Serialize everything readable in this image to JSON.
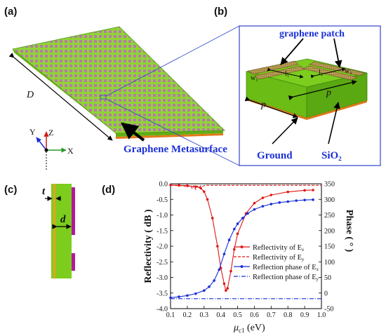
{
  "panels": {
    "a": "(a)",
    "b": "(b)",
    "c": "(c)",
    "d": "(d)"
  },
  "panel_a": {
    "size_label": "D",
    "axis_x": "X",
    "axis_y": "Y",
    "axis_z": "Z",
    "callout": "Graphene Metasurface"
  },
  "panel_b": {
    "patch_label": "graphene patch",
    "l1": "l₁",
    "l2": "l₂",
    "w1": "w₁",
    "w2": "w₂",
    "p_top": "p",
    "p_side": "p",
    "ground": "Ground",
    "substrate": "SiO₂"
  },
  "panel_c": {
    "t": "t",
    "d": "d"
  },
  "colors": {
    "substrate_green": "#7ccd1e",
    "ground_orange": "#e07a1a",
    "graphene_magenta": "#b4189a",
    "patch_brown": "#b59a52",
    "callout_blue": "#1a2fd6",
    "border_blue": "#3344cc",
    "red_series": "#e01818",
    "blue_series": "#1a2fd6"
  },
  "chart_data": {
    "type": "line",
    "xlabel_mu": "μ",
    "xlabel_sub": "c1",
    "xlabel_unit": " (eV)",
    "ylabel_left": "Reflectivity ( dB )",
    "ylabel_right": "Phase ( ° )",
    "xlim": [
      0.1,
      1.0
    ],
    "ylim_left": [
      -4.0,
      0.0
    ],
    "ylim_right": [
      -50,
      350
    ],
    "x_ticks": [
      "0.1",
      "0.2",
      "0.3",
      "0.4",
      "0.5",
      "0.6",
      "0.7",
      "0.8",
      "0.9",
      "1.0"
    ],
    "y_left_ticks": [
      "0.0",
      "-0.5",
      "-1.0",
      "-1.5",
      "-2.0",
      "-2.5",
      "-3.0",
      "-3.5",
      "-4.0"
    ],
    "y_right_ticks": [
      "350",
      "300",
      "250",
      "200",
      "150",
      "100",
      "50",
      "0",
      "-50"
    ],
    "legend_position": "center-right",
    "series": [
      {
        "name": "Reflectivity of E",
        "sub": "x",
        "axis": "left",
        "color": "#e01818",
        "style": "solid-marker",
        "x": [
          0.1,
          0.15,
          0.2,
          0.25,
          0.28,
          0.3,
          0.32,
          0.35,
          0.38,
          0.4,
          0.42,
          0.43,
          0.44,
          0.46,
          0.48,
          0.5,
          0.55,
          0.6,
          0.65,
          0.7,
          0.8,
          0.9,
          0.95
        ],
        "y": [
          -0.04,
          -0.05,
          -0.06,
          -0.09,
          -0.14,
          -0.25,
          -0.5,
          -1.1,
          -2.0,
          -2.7,
          -3.2,
          -3.42,
          -3.35,
          -2.8,
          -2.1,
          -1.6,
          -0.95,
          -0.62,
          -0.45,
          -0.36,
          -0.26,
          -0.21,
          -0.2
        ]
      },
      {
        "name": "Reflectivity of E",
        "sub": "y",
        "axis": "left",
        "color": "#e01818",
        "style": "dashed",
        "x": [
          0.1,
          0.15,
          0.18,
          0.2,
          0.22,
          0.23,
          0.24,
          0.25,
          0.26,
          0.27,
          0.28,
          0.29,
          0.3,
          0.31,
          0.35,
          0.5,
          0.7,
          0.9,
          1.0
        ],
        "y": [
          -0.05,
          -0.06,
          -0.07,
          -0.1,
          -0.06,
          -0.16,
          -0.06,
          -0.18,
          -0.07,
          -0.12,
          -0.06,
          -0.09,
          -0.06,
          -0.05,
          -0.05,
          -0.05,
          -0.05,
          -0.05,
          -0.05
        ]
      },
      {
        "name": "Reflection phase of E",
        "sub": "x",
        "axis": "right",
        "color": "#1a2fd6",
        "style": "solid-marker",
        "x": [
          0.1,
          0.15,
          0.2,
          0.25,
          0.3,
          0.33,
          0.36,
          0.39,
          0.42,
          0.45,
          0.48,
          0.5,
          0.53,
          0.56,
          0.6,
          0.65,
          0.7,
          0.75,
          0.8,
          0.85,
          0.9,
          0.95
        ],
        "y": [
          -15,
          -12,
          -8,
          -2,
          8,
          20,
          40,
          75,
          125,
          170,
          205,
          222,
          240,
          255,
          268,
          278,
          285,
          290,
          293,
          296,
          298,
          299
        ]
      },
      {
        "name": "Reflection phase of E",
        "sub": "y",
        "axis": "right",
        "color": "#1a2fd6",
        "style": "dashed",
        "x": [
          0.1,
          0.3,
          0.5,
          0.7,
          0.9,
          1.0
        ],
        "y": [
          -18,
          -18,
          -18,
          -18,
          -18,
          -18
        ]
      }
    ]
  }
}
